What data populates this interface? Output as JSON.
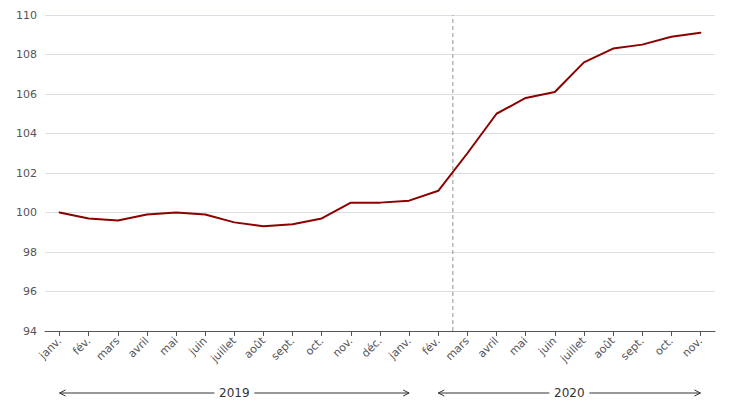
{
  "chart_data": {
    "type": "line",
    "categories": [
      "janv.",
      "fév.",
      "mars",
      "avril",
      "mai",
      "juin",
      "juillet",
      "août",
      "sept.",
      "oct.",
      "nov.",
      "déc.",
      "janv.",
      "fév.",
      "mars",
      "avril",
      "mai",
      "juin",
      "juillet",
      "août",
      "sept.",
      "oct.",
      "nov."
    ],
    "values": [
      100.0,
      99.7,
      99.6,
      99.9,
      100.0,
      99.9,
      99.5,
      99.3,
      99.4,
      99.7,
      100.5,
      100.5,
      100.6,
      101.1,
      103.0,
      105.0,
      105.8,
      106.1,
      107.6,
      108.3,
      108.5,
      108.9,
      109.1
    ],
    "color": "#8B0000",
    "ylim": [
      94,
      110
    ],
    "yticks": [
      94,
      96,
      98,
      100,
      102,
      104,
      106,
      108,
      110
    ],
    "grid": true,
    "vline": {
      "x": 13.5,
      "color": "#aaaaaa",
      "line_style": "dashed"
    },
    "annotations": [
      {
        "text": "2019",
        "start": 0,
        "end": 12
      },
      {
        "text": "2020",
        "start": 13,
        "end": 22
      }
    ]
  }
}
